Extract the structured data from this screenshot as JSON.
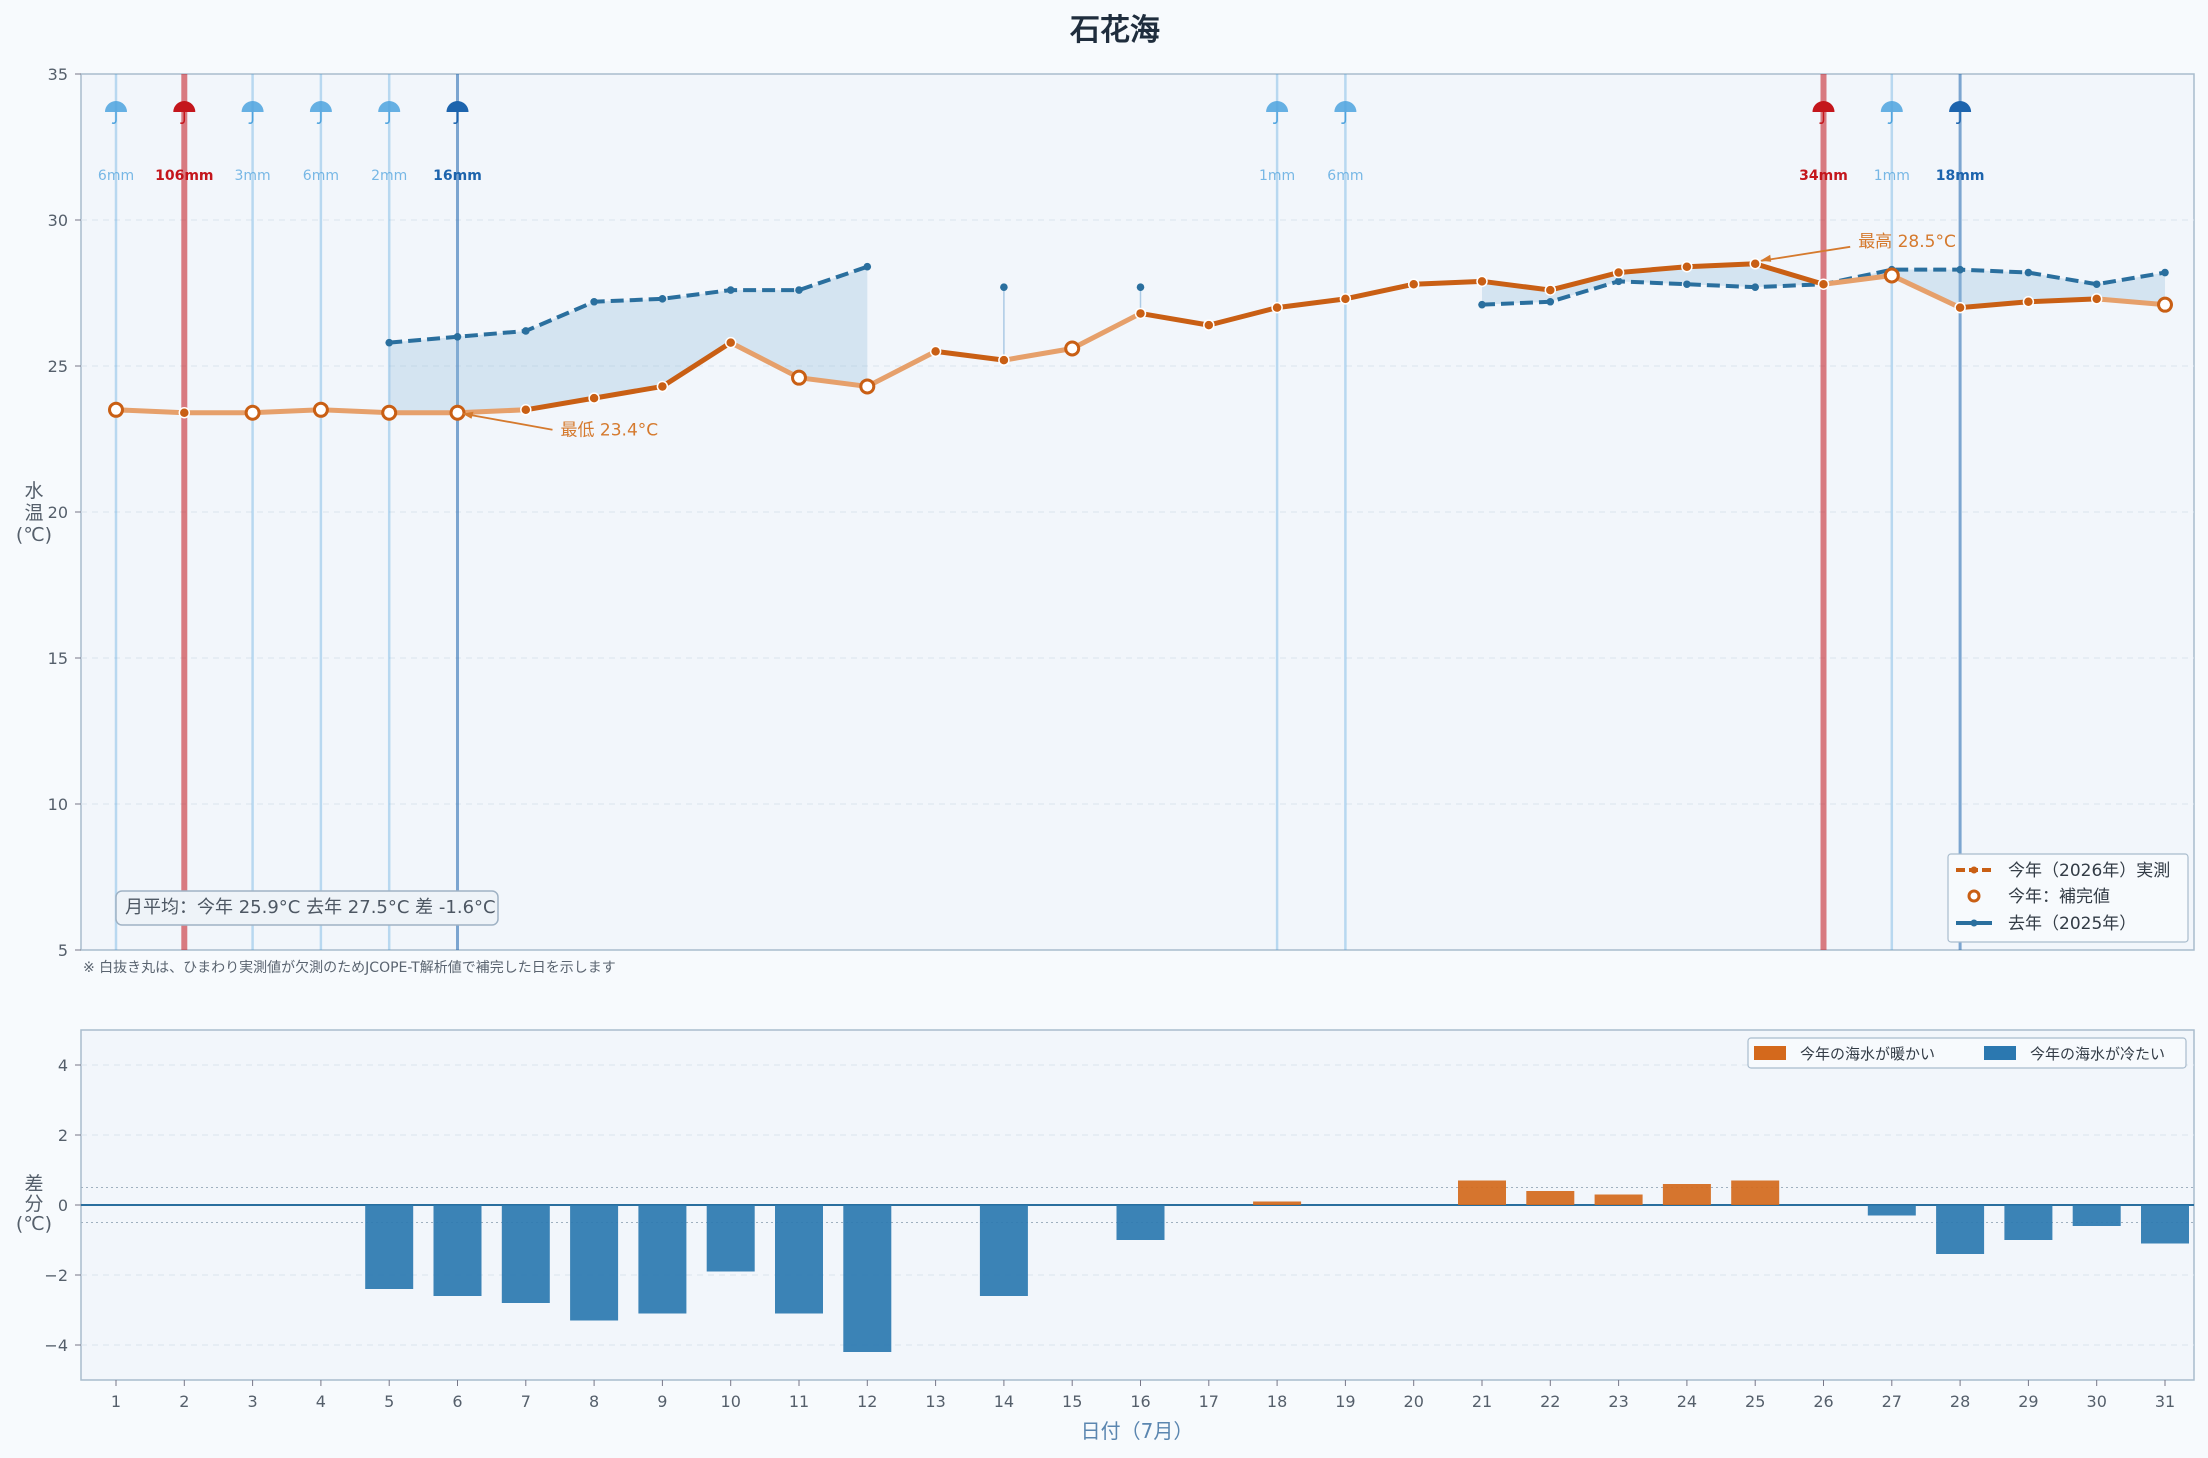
{
  "title": "石花海",
  "note": "※ 白抜き丸は、ひまわり実測値が欠測のためJCOPE-T解析値で補完した日を示します",
  "monthly_average": "月平均：今年 25.9°C  去年 27.5°C  差 -1.6°C",
  "legend_top": [
    {
      "label": "今年（2026年）実測",
      "color": "#c95f14"
    },
    {
      "label": "今年：補完値",
      "color": "#c95f14"
    },
    {
      "label": "去年（2025年）",
      "color": "#2a6f9e"
    }
  ],
  "legend_bottom": [
    {
      "label": "今年の海水が暖かい",
      "color": "#d4691c"
    },
    {
      "label": "今年の海水が冷たい",
      "color": "#2b78b0"
    }
  ],
  "annotations": {
    "max_label": "最高 28.5°C",
    "min_label": "最低 23.4°C"
  },
  "colors": {
    "this_year": "#c95f14",
    "this_year_light": "#e6a06b",
    "last_year": "#2a6f9e",
    "warm": "#d4691c",
    "cold": "#2b78b0",
    "rain_light": "#4ea3de",
    "rain_mid": "#1d64ad",
    "rain_heavy": "#c4161c"
  },
  "chart_data": [
    {
      "type": "line",
      "title": "石花海",
      "ylabel": "水温(℃)",
      "ylim": [
        5,
        35
      ],
      "yticks": [
        "5",
        "10",
        "15",
        "20",
        "25",
        "30",
        "35"
      ],
      "x": [
        1,
        2,
        3,
        4,
        5,
        6,
        7,
        8,
        9,
        10,
        11,
        12,
        13,
        14,
        15,
        16,
        17,
        18,
        19,
        20,
        21,
        22,
        23,
        24,
        25,
        26,
        27,
        28,
        29,
        30,
        31
      ],
      "series": [
        {
          "name": "今年（2026年）実測",
          "values": [
            23.5,
            23.4,
            23.4,
            23.5,
            23.4,
            23.4,
            23.5,
            23.9,
            24.3,
            25.8,
            24.6,
            24.3,
            25.5,
            25.2,
            25.6,
            26.8,
            26.4,
            27.0,
            27.3,
            27.8,
            27.9,
            27.6,
            28.2,
            28.4,
            28.5,
            27.8,
            28.1,
            27.0,
            27.2,
            27.3,
            27.1
          ],
          "imputed": [
            1,
            3,
            4,
            5,
            6,
            11,
            12,
            15,
            27,
            31
          ]
        },
        {
          "name": "去年（2025年）",
          "values": [
            null,
            null,
            null,
            null,
            25.8,
            26.0,
            26.2,
            27.2,
            27.3,
            27.6,
            27.6,
            28.4,
            null,
            27.7,
            null,
            27.7,
            null,
            null,
            null,
            null,
            27.1,
            27.2,
            27.9,
            27.8,
            27.7,
            27.8,
            28.3,
            28.3,
            28.2,
            27.8,
            28.2
          ]
        }
      ],
      "rain": [
        {
          "day": 1,
          "label": "6mm",
          "level": "light"
        },
        {
          "day": 2,
          "label": "106mm",
          "level": "heavy"
        },
        {
          "day": 3,
          "label": "3mm",
          "level": "light"
        },
        {
          "day": 4,
          "label": "6mm",
          "level": "light"
        },
        {
          "day": 5,
          "label": "2mm",
          "level": "light"
        },
        {
          "day": 6,
          "label": "16mm",
          "level": "mid"
        },
        {
          "day": 18,
          "label": "1mm",
          "level": "light"
        },
        {
          "day": 19,
          "label": "6mm",
          "level": "light"
        },
        {
          "day": 26,
          "label": "34mm",
          "level": "heavy"
        },
        {
          "day": 27,
          "label": "1mm",
          "level": "light"
        },
        {
          "day": 28,
          "label": "18mm",
          "level": "mid"
        }
      ],
      "annotations": [
        {
          "text": "最高 28.5°C",
          "day": 25,
          "value": 28.5
        },
        {
          "text": "最低 23.4°C",
          "day": 6,
          "value": 23.4
        }
      ]
    },
    {
      "type": "bar",
      "ylabel": "差分(℃)",
      "xlabel": "日付（7月）",
      "ylim": [
        -5,
        5
      ],
      "yticks": [
        "−4",
        "−2",
        "0",
        "2",
        "4"
      ],
      "categories": [
        "1",
        "2",
        "3",
        "4",
        "5",
        "6",
        "7",
        "8",
        "9",
        "10",
        "11",
        "12",
        "13",
        "14",
        "15",
        "16",
        "17",
        "18",
        "19",
        "20",
        "21",
        "22",
        "23",
        "24",
        "25",
        "26",
        "27",
        "28",
        "29",
        "30",
        "31"
      ],
      "values": [
        null,
        null,
        null,
        null,
        -2.4,
        -2.6,
        -2.8,
        -3.3,
        -3.1,
        -1.9,
        -3.1,
        -4.2,
        null,
        -2.6,
        null,
        -1.0,
        null,
        0.1,
        null,
        null,
        0.7,
        0.4,
        0.3,
        0.6,
        0.7,
        0,
        -0.3,
        -1.4,
        -1.0,
        -0.6,
        -1.1
      ]
    }
  ]
}
